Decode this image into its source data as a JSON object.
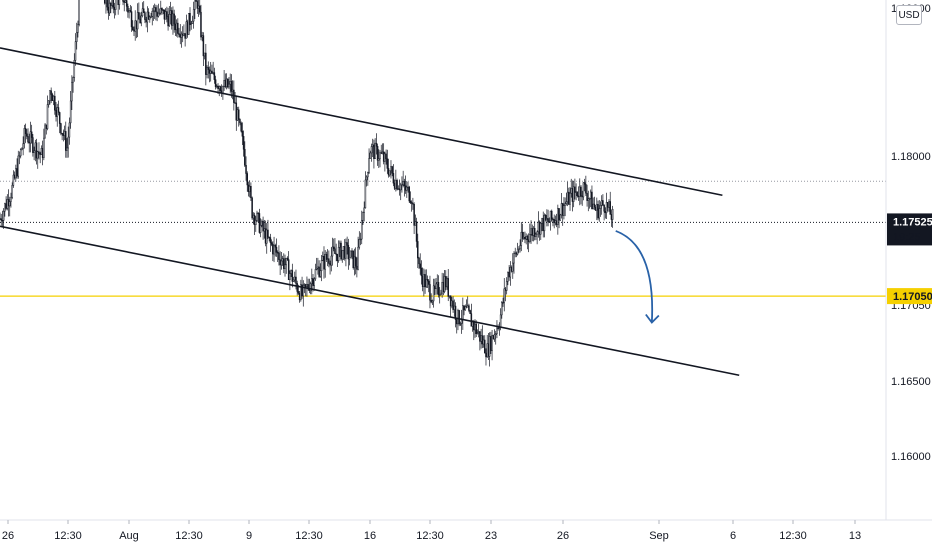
{
  "chart_data": {
    "type": "candlestick",
    "currency": "USD",
    "y_axis": {
      "range": [
        1.1555,
        1.1892
      ],
      "ticks": [
        "1.18000",
        "1.17500",
        "1.17050",
        "1.16500",
        "1.16000"
      ],
      "top_tick": "1.19000"
    },
    "x_axis": {
      "ticks": [
        "26",
        "12:30",
        "Aug",
        "12:30",
        "9",
        "12:30",
        "16",
        "12:30",
        "23",
        "26",
        "Sep",
        "6",
        "12:30",
        "13"
      ]
    },
    "price_tags": {
      "last_price": "1.17525",
      "countdown": "19:25",
      "horizontal_level": "1.17050"
    },
    "levels": {
      "last_price": 1.17525,
      "support": 1.1705,
      "dotted_high": 1.1779
    },
    "channel_lines": [
      {
        "from": [
          0,
          1.1865
        ],
        "to": [
          86,
          1.177
        ]
      },
      {
        "from": [
          0,
          1.175
        ],
        "to": [
          88,
          1.1654
        ]
      }
    ],
    "price_path": [
      [
        0,
        1.1755
      ],
      [
        1.5,
        1.1775
      ],
      [
        3,
        1.181
      ],
      [
        5,
        1.1795
      ],
      [
        6,
        1.184
      ],
      [
        8,
        1.18
      ],
      [
        9.5,
        1.19
      ],
      [
        11.5,
        1.1915
      ],
      [
        13,
        1.189
      ],
      [
        14.5,
        1.19
      ],
      [
        16,
        1.188
      ],
      [
        18,
        1.189
      ],
      [
        20,
        1.1885
      ],
      [
        22,
        1.1875
      ],
      [
        23.5,
        1.1895
      ],
      [
        24.5,
        1.185
      ],
      [
        26.5,
        1.184
      ],
      [
        27.5,
        1.184
      ],
      [
        29,
        1.18
      ],
      [
        30,
        1.176
      ],
      [
        32,
        1.174
      ],
      [
        34,
        1.1725
      ],
      [
        36,
        1.1705
      ],
      [
        37.5,
        1.172
      ],
      [
        39,
        1.173
      ],
      [
        41,
        1.1735
      ],
      [
        42.5,
        1.1725
      ],
      [
        44,
        1.18
      ],
      [
        45.5,
        1.1795
      ],
      [
        47,
        1.178
      ],
      [
        49,
        1.177
      ],
      [
        50,
        1.172
      ],
      [
        51.5,
        1.1705
      ],
      [
        53,
        1.1715
      ],
      [
        54.5,
        1.169
      ],
      [
        55.5,
        1.1695
      ],
      [
        57,
        1.168
      ],
      [
        58,
        1.167
      ],
      [
        59.5,
        1.169
      ],
      [
        60.5,
        1.172
      ],
      [
        62,
        1.174
      ],
      [
        64,
        1.175
      ],
      [
        66,
        1.1755
      ],
      [
        68,
        1.177
      ],
      [
        69.5,
        1.1775
      ],
      [
        71,
        1.176
      ],
      [
        72,
        1.1765
      ],
      [
        73,
        1.1755
      ]
    ],
    "forecast_arrow": {
      "from": [
        73.3,
        1.1747
      ],
      "to": [
        77.6,
        1.1688
      ]
    }
  }
}
